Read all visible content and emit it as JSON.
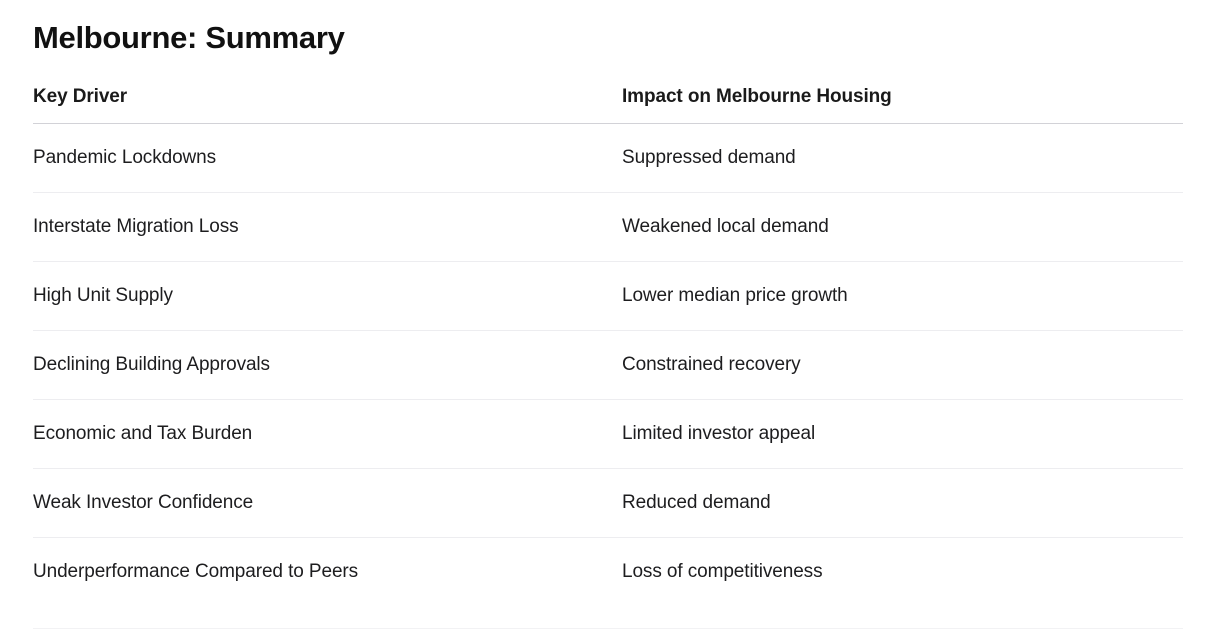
{
  "page": {
    "title": "Melbourne: Summary"
  },
  "table": {
    "headers": [
      "Key Driver",
      "Impact on Melbourne Housing"
    ],
    "rows": [
      [
        "Pandemic Lockdowns",
        "Suppressed demand"
      ],
      [
        "Interstate Migration Loss",
        "Weakened local demand"
      ],
      [
        "High Unit Supply",
        "Lower median price growth"
      ],
      [
        "Declining Building Approvals",
        "Constrained recovery"
      ],
      [
        "Economic and Tax Burden",
        "Limited investor appeal"
      ],
      [
        "Weak Investor Confidence",
        "Reduced demand"
      ],
      [
        "Underperformance Compared to Peers",
        "Loss of competitiveness"
      ]
    ]
  },
  "colors": {
    "background": "#ffffff",
    "text": "#1d1d1f",
    "title_text": "#111111",
    "header_divider": "#d2d2d7",
    "row_divider": "#ededf0"
  }
}
